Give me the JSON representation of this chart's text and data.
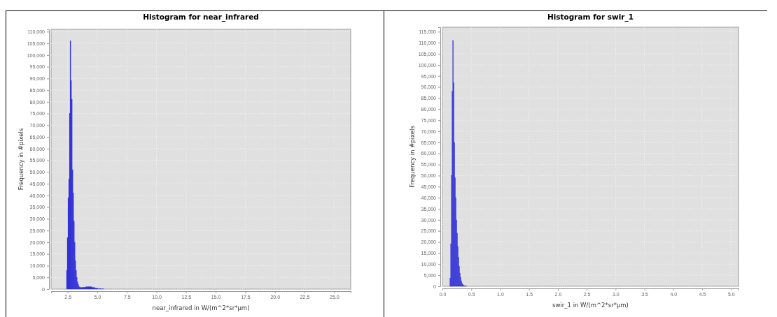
{
  "chart_data": [
    {
      "type": "histogram",
      "title": "Histogram for near_infrared",
      "xlabel": "near_infrared in W/(m^2*sr*µm)",
      "ylabel": "Frequency in #pixels",
      "color": "#3030d8",
      "grid": true,
      "bins": [
        2.4,
        2.46,
        2.52,
        2.58,
        2.64,
        2.7,
        2.76,
        2.82,
        2.88,
        2.94,
        3.0,
        3.06,
        3.12,
        3.18,
        3.24,
        3.3,
        3.36,
        3.42,
        3.48,
        3.54,
        3.79,
        4.04,
        4.29,
        4.54,
        4.79,
        5.04,
        5.29,
        5.54
      ],
      "values": [
        8000,
        22000,
        39000,
        47000,
        75000,
        106000,
        89000,
        81000,
        51000,
        41000,
        29000,
        20000,
        12000,
        8000,
        5000,
        3000,
        2000,
        1200,
        800,
        700,
        800,
        1000,
        1000,
        700,
        400,
        200,
        100
      ],
      "xlim": [
        1.1,
        26.4
      ],
      "ylim": [
        0,
        111000
      ],
      "xticks": [
        {
          "value": 2.5,
          "label": "2.5"
        },
        {
          "value": 5,
          "label": "5.0"
        },
        {
          "value": 7.5,
          "label": "7.5"
        },
        {
          "value": 10,
          "label": "10.0"
        },
        {
          "value": 12.5,
          "label": "12.5"
        },
        {
          "value": 15,
          "label": "15.0"
        },
        {
          "value": 17.5,
          "label": "17.5"
        },
        {
          "value": 20,
          "label": "20.0"
        },
        {
          "value": 22.5,
          "label": "22.5"
        },
        {
          "value": 25,
          "label": "25.0"
        }
      ],
      "yticks": [
        0,
        {
          "value": 5000,
          "label": "5,000"
        },
        {
          "value": 10000,
          "label": "10,000"
        },
        {
          "value": 15000,
          "label": "15,000"
        },
        {
          "value": 20000,
          "label": "20,000"
        },
        {
          "value": 25000,
          "label": "25,000"
        },
        {
          "value": 30000,
          "label": "30,000"
        },
        {
          "value": 35000,
          "label": "35,000"
        },
        {
          "value": 40000,
          "label": "40,000"
        },
        {
          "value": 45000,
          "label": "45,000"
        },
        {
          "value": 50000,
          "label": "50,000"
        },
        {
          "value": 55000,
          "label": "55,000"
        },
        {
          "value": 60000,
          "label": "60,000"
        },
        {
          "value": 65000,
          "label": "65,000"
        },
        {
          "value": 70000,
          "label": "70,000"
        },
        {
          "value": 75000,
          "label": "75,000"
        },
        {
          "value": 80000,
          "label": "80,000"
        },
        {
          "value": 85000,
          "label": "85,000"
        },
        {
          "value": 90000,
          "label": "90,000"
        },
        {
          "value": 95000,
          "label": "95,000"
        },
        {
          "value": 100000,
          "label": "100,000"
        },
        {
          "value": 105000,
          "label": "105,000"
        },
        {
          "value": 110000,
          "label": "110,000"
        }
      ]
    },
    {
      "type": "histogram",
      "title": "Histogram for swir_1",
      "xlabel": "swir_1 in W/(m^2*sr*µm)",
      "ylabel": "Frequency in #pixels",
      "color": "#3030d8",
      "grid": true,
      "bins": [
        0.13,
        0.142,
        0.154,
        0.166,
        0.178,
        0.19,
        0.202,
        0.214,
        0.226,
        0.238,
        0.25,
        0.262,
        0.274,
        0.286,
        0.298,
        0.31,
        0.322,
        0.334,
        0.346,
        0.358,
        0.37,
        0.382,
        0.394,
        0.406,
        0.418
      ],
      "values": [
        3600,
        19000,
        50000,
        88000,
        111000,
        92000,
        65000,
        49000,
        40000,
        30000,
        24000,
        18000,
        13000,
        9000,
        6000,
        4000,
        2500,
        1500,
        900,
        500,
        300,
        200,
        100,
        100
      ],
      "xlim": [
        0,
        5.13
      ],
      "ylim": [
        0,
        117000
      ],
      "xticks": [
        {
          "value": 0,
          "label": "0.0"
        },
        0.5,
        {
          "value": 1,
          "label": "1.0"
        },
        1.5,
        {
          "value": 2,
          "label": "2.0"
        },
        2.5,
        {
          "value": 3,
          "label": "3.0"
        },
        3.5,
        {
          "value": 4,
          "label": "4.0"
        },
        4.5,
        {
          "value": 5,
          "label": "5.0"
        }
      ],
      "yticks": [
        0,
        {
          "value": 5000,
          "label": "5,000"
        },
        {
          "value": 10000,
          "label": "10,000"
        },
        {
          "value": 15000,
          "label": "15,000"
        },
        {
          "value": 20000,
          "label": "20,000"
        },
        {
          "value": 25000,
          "label": "25,000"
        },
        {
          "value": 30000,
          "label": "30,000"
        },
        {
          "value": 35000,
          "label": "35,000"
        },
        {
          "value": 40000,
          "label": "40,000"
        },
        {
          "value": 45000,
          "label": "45,000"
        },
        {
          "value": 50000,
          "label": "50,000"
        },
        {
          "value": 55000,
          "label": "55,000"
        },
        {
          "value": 60000,
          "label": "60,000"
        },
        {
          "value": 65000,
          "label": "65,000"
        },
        {
          "value": 70000,
          "label": "70,000"
        },
        {
          "value": 75000,
          "label": "75,000"
        },
        {
          "value": 80000,
          "label": "80,000"
        },
        {
          "value": 85000,
          "label": "85,000"
        },
        {
          "value": 90000,
          "label": "90,000"
        },
        {
          "value": 95000,
          "label": "95,000"
        },
        {
          "value": 100000,
          "label": "100,000"
        },
        {
          "value": 105000,
          "label": "105,000"
        },
        {
          "value": 110000,
          "label": "110,000"
        },
        {
          "value": 115000,
          "label": "115,000"
        }
      ]
    }
  ]
}
